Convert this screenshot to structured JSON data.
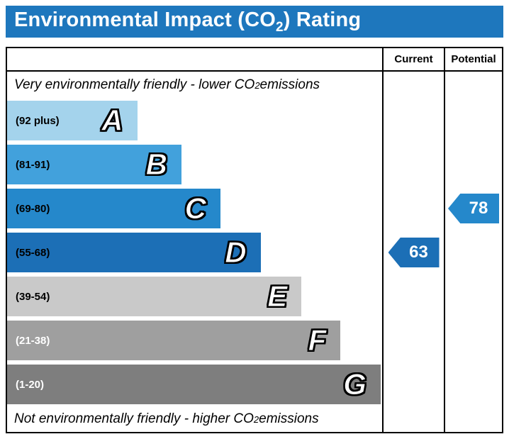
{
  "header": {
    "title_prefix": "Environmental Impact (CO",
    "title_sub": "2",
    "title_suffix": ") Rating",
    "bg_color": "#1e77bd"
  },
  "table": {
    "current_label": "Current",
    "potential_label": "Potential",
    "top_note": {
      "prefix": "Very environmentally friendly - lower CO",
      "sub": "2",
      "suffix": " emissions"
    },
    "bottom_note": {
      "prefix": "Not environmentally friendly - higher CO",
      "sub": "2",
      "suffix": " emissions"
    }
  },
  "chart_data": {
    "type": "bar",
    "title": "Environmental Impact (CO2) Rating",
    "bands": [
      {
        "letter": "A",
        "range_label": "(92 plus)",
        "color": "#a4d3ec",
        "label_color": "#000000"
      },
      {
        "letter": "B",
        "range_label": "(81-91)",
        "color": "#42a1dc",
        "label_color": "#000000"
      },
      {
        "letter": "C",
        "range_label": "(69-80)",
        "color": "#2588cb",
        "label_color": "#000000"
      },
      {
        "letter": "D",
        "range_label": "(55-68)",
        "color": "#1c6fb6",
        "label_color": "#000000"
      },
      {
        "letter": "E",
        "range_label": "(39-54)",
        "color": "#c9c9c9",
        "label_color": "#000000"
      },
      {
        "letter": "F",
        "range_label": "(21-38)",
        "color": "#9f9f9f",
        "label_color": "#ffffff"
      },
      {
        "letter": "G",
        "range_label": "(1-20)",
        "color": "#7e7e7e",
        "label_color": "#ffffff"
      }
    ],
    "current": {
      "value": "63",
      "band": "D",
      "color": "#1c6fb6"
    },
    "potential": {
      "value": "78",
      "band": "C",
      "color": "#2588cb"
    }
  }
}
